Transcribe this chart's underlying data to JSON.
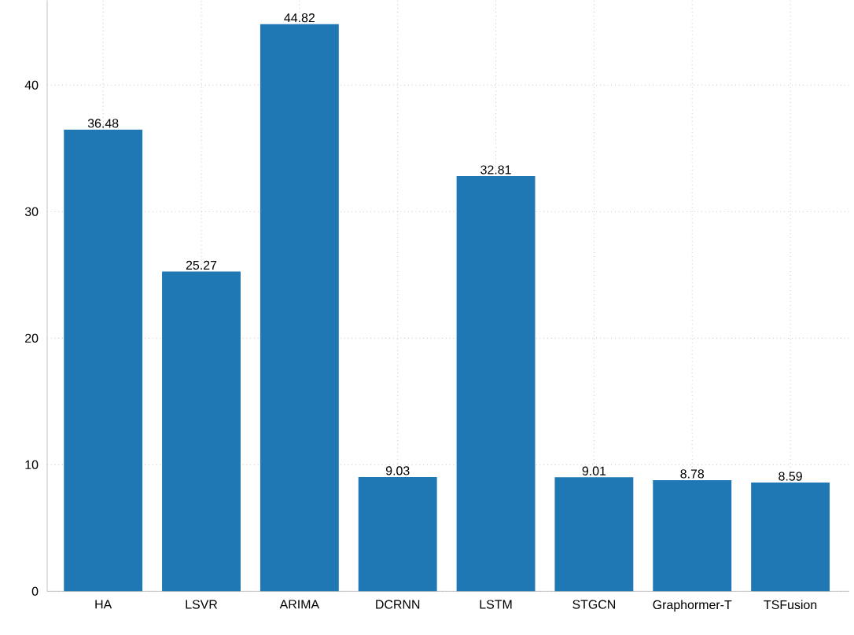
{
  "chart_data": {
    "type": "bar",
    "categories": [
      "HA",
      "LSVR",
      "ARIMA",
      "DCRNN",
      "LSTM",
      "STGCN",
      "Graphormer-T",
      "TSFusion"
    ],
    "values": [
      36.48,
      25.27,
      44.82,
      9.03,
      32.81,
      9.01,
      8.78,
      8.59
    ],
    "color": "#1f77b4",
    "ylim": [
      0,
      46.7
    ],
    "yticks": [
      0,
      10,
      20,
      30,
      40
    ],
    "grid": true,
    "data_labels": true
  }
}
